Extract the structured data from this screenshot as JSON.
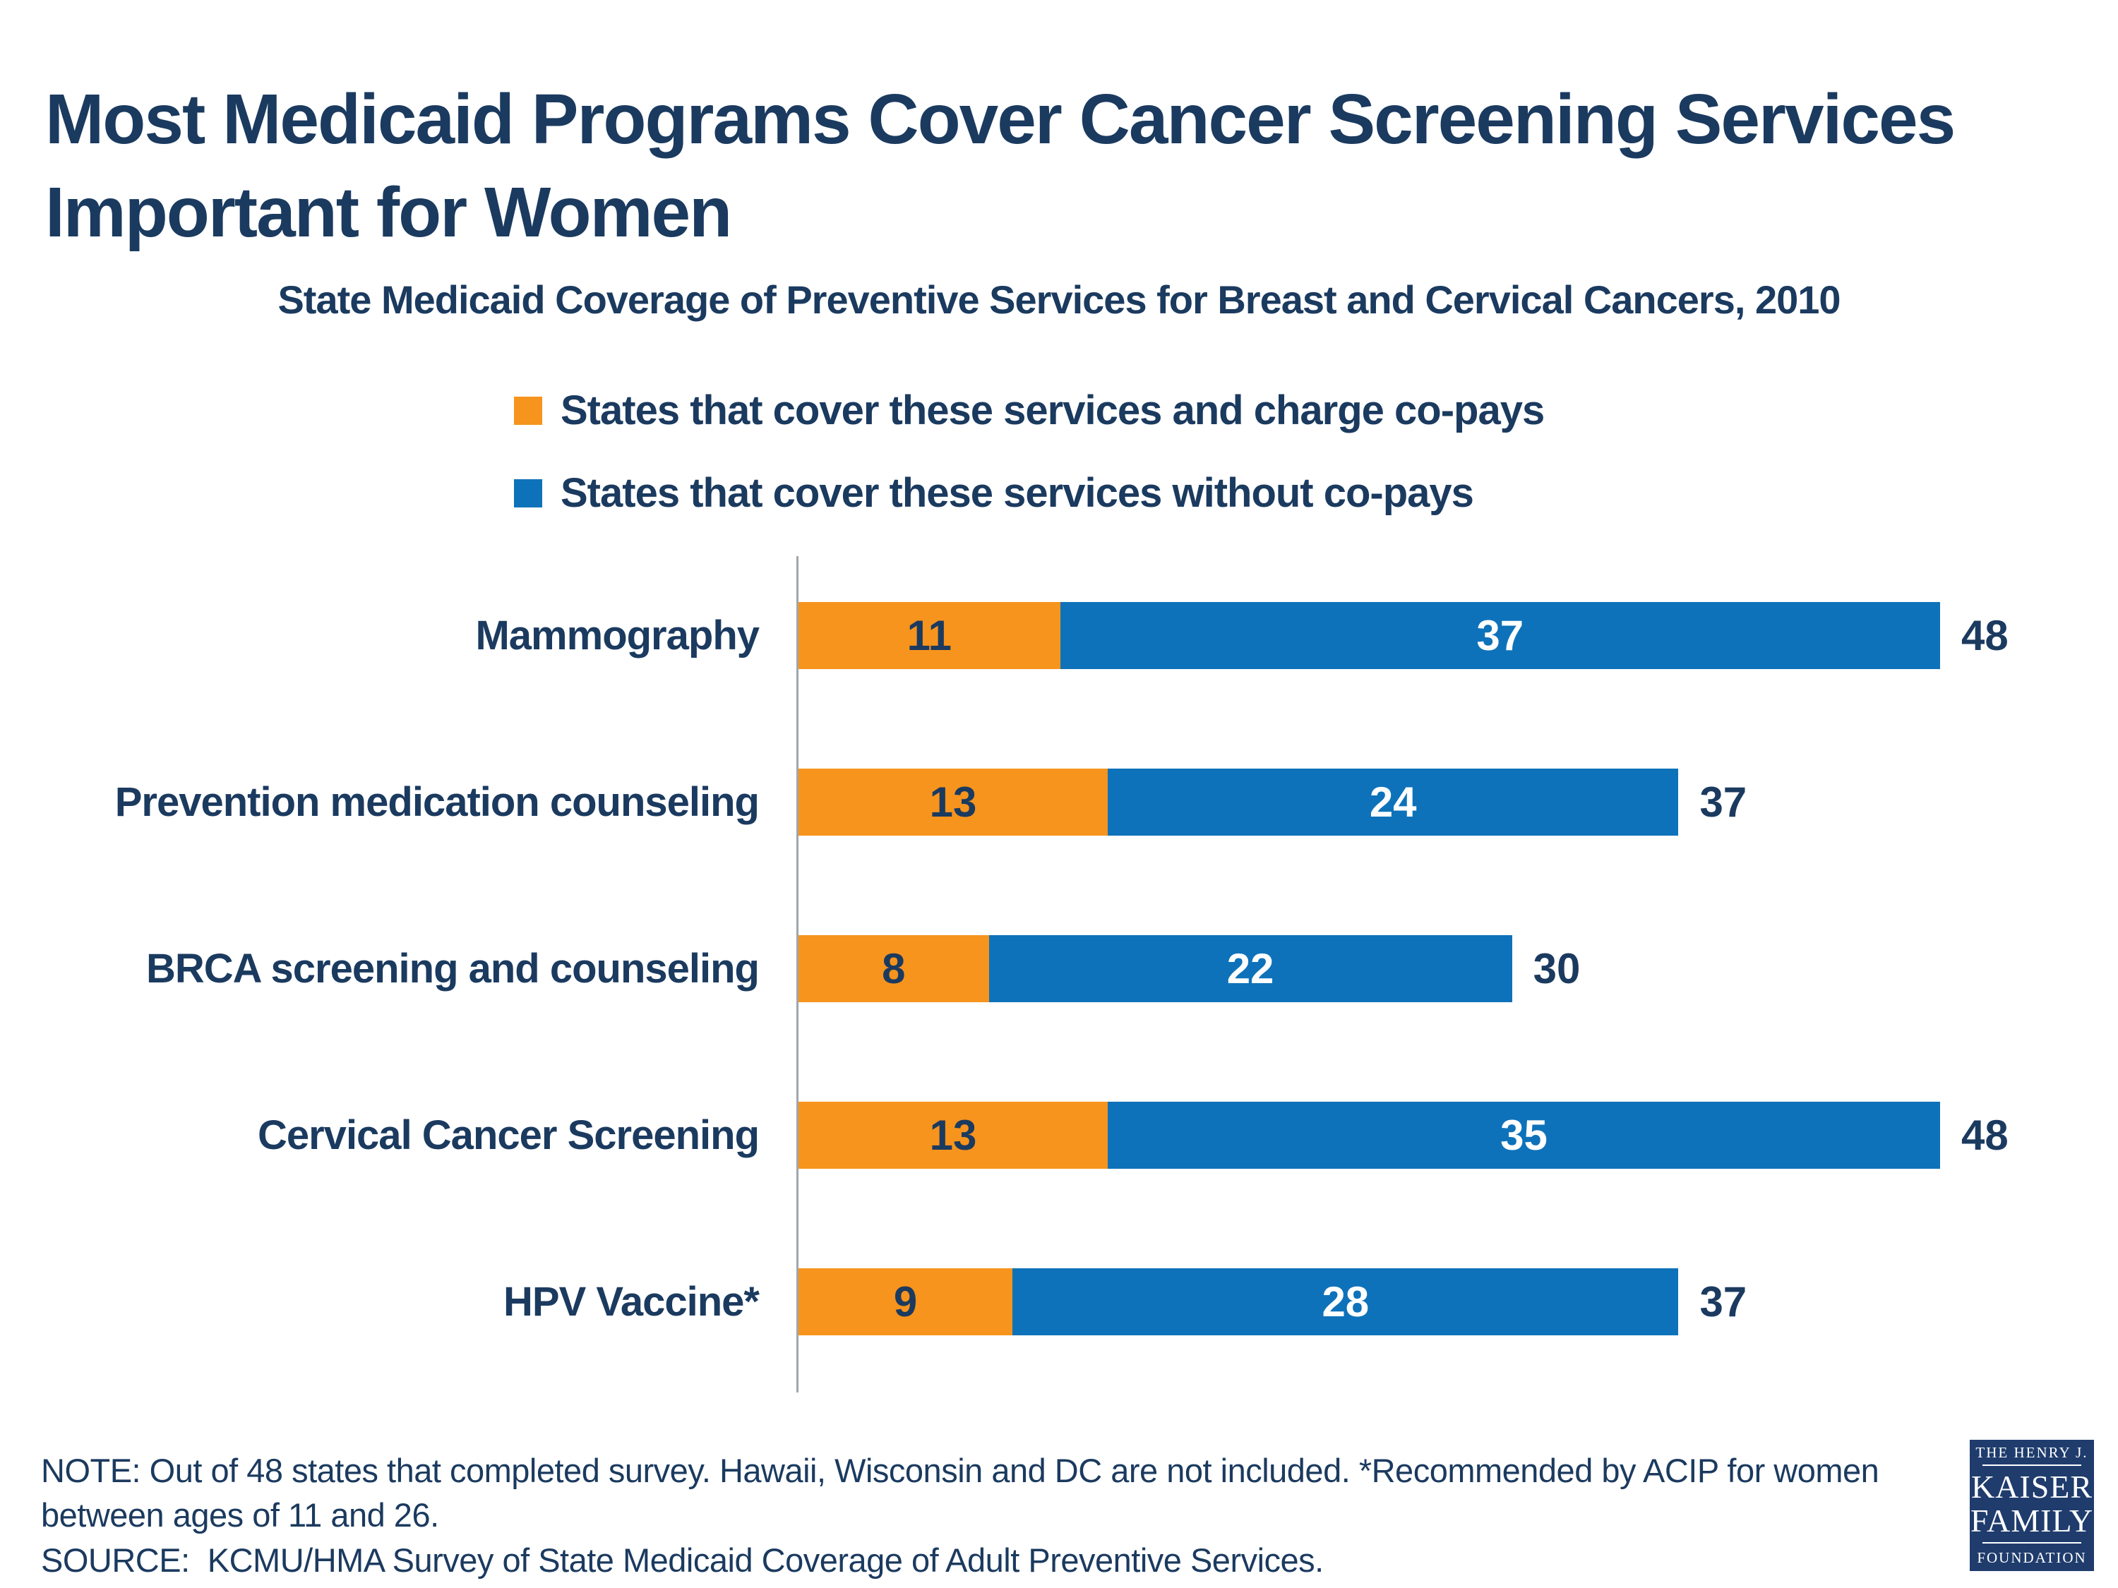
{
  "title": "Most Medicaid Programs Cover Cancer Screening Services Important for Women",
  "subtitle": "State Medicaid Coverage of Preventive Services for Breast and Cervical Cancers, 2010",
  "legend": {
    "items": [
      {
        "label": "States that cover these services and charge co-pays",
        "color": "#F7941D"
      },
      {
        "label": "States that cover these services without co-pays",
        "color": "#0E72BA"
      }
    ]
  },
  "chart_data": {
    "type": "bar",
    "orientation": "horizontal",
    "stacked": true,
    "categories": [
      "Mammography",
      "Prevention medication counseling",
      "BRCA screening and counseling",
      "Cervical Cancer Screening",
      "HPV Vaccine*"
    ],
    "series": [
      {
        "name": "States that cover these services and charge co-pays",
        "color": "#F7941D",
        "label_color": "#1B3A5F",
        "values": [
          11,
          13,
          8,
          13,
          9
        ]
      },
      {
        "name": "States that cover these services without co-pays",
        "color": "#0E72BA",
        "label_color": "#FFFFFF",
        "values": [
          37,
          24,
          22,
          35,
          28
        ]
      }
    ],
    "totals": [
      48,
      37,
      30,
      48,
      37
    ],
    "xlim": [
      0,
      48
    ],
    "grid": false,
    "axis_color": "#A0A6AB",
    "legend_position": "top"
  },
  "note": "NOTE: Out of 48 states that completed survey. Hawaii, Wisconsin and DC are not included. *Recommended by ACIP for women between ages of 11 and 26.",
  "source": "SOURCE:  KCMU/HMA Survey of State Medicaid Coverage of Adult Preventive Services.",
  "colors": {
    "navy": "#1B3A5F",
    "orange": "#F7941D",
    "blue": "#0E72BA",
    "background": "#FFFFFF"
  },
  "logo": {
    "line1": "THE HENRY J.",
    "line2": "KAISER",
    "line3": "FAMILY",
    "line4": "FOUNDATION",
    "bg": "#1F3C6D",
    "fg": "#FFFFFF"
  }
}
